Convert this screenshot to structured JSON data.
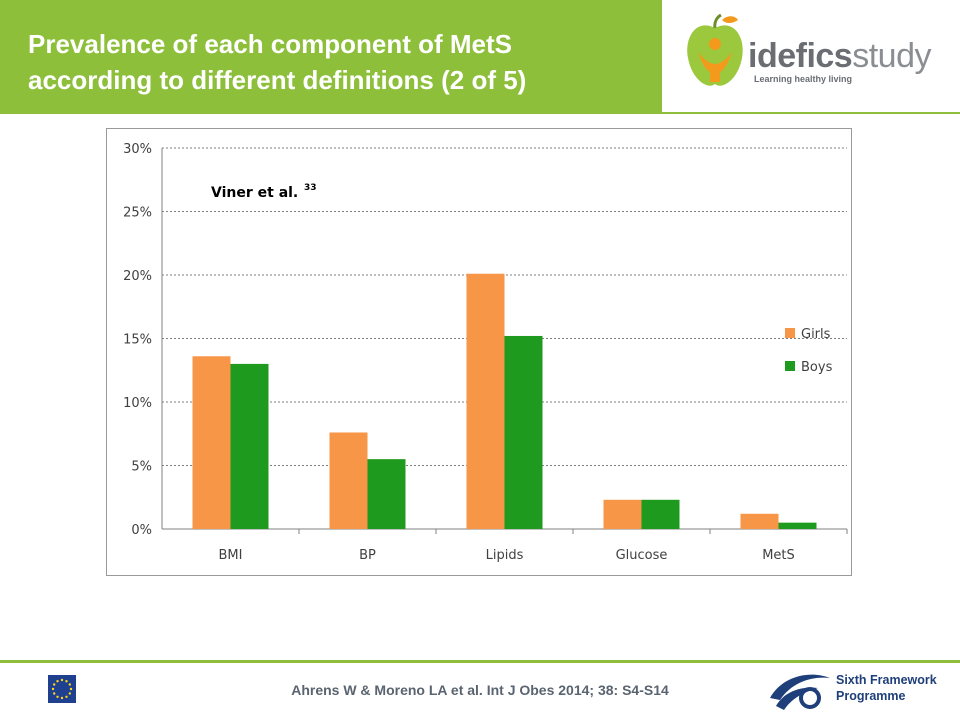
{
  "slide": {
    "title_line1": "Prevalence of each component of MetS",
    "title_line2": "according to different definitions (2 of 5)",
    "logo_word_bold": "idefics",
    "logo_word_light": "study",
    "logo_tagline": "Learning healthy living",
    "citation": "Ahrens W & Moreno LA  et al. Int J Obes 2014; 38: S4-S14",
    "program_line1": "Sixth Framework",
    "program_line2": "Programme"
  },
  "colors": {
    "title_band": "#8dbf3b",
    "girls": "#f79646",
    "boys": "#1e9b1e"
  },
  "chart_data": {
    "type": "bar",
    "annotation": "Viner et al.",
    "annotation_sup": "33",
    "categories": [
      "BMI",
      "BP",
      "Lipids",
      "Glucose",
      "MetS"
    ],
    "series": [
      {
        "name": "Girls",
        "values": [
          13.6,
          7.6,
          20.1,
          2.3,
          1.2
        ]
      },
      {
        "name": "Boys",
        "values": [
          13.0,
          5.5,
          15.2,
          2.3,
          0.5
        ]
      }
    ],
    "yticks": [
      "0%",
      "5%",
      "10%",
      "15%",
      "20%",
      "25%",
      "30%"
    ],
    "ylim": [
      0,
      30
    ],
    "ytick_step": 5,
    "grid": true,
    "legend_position": "right"
  }
}
